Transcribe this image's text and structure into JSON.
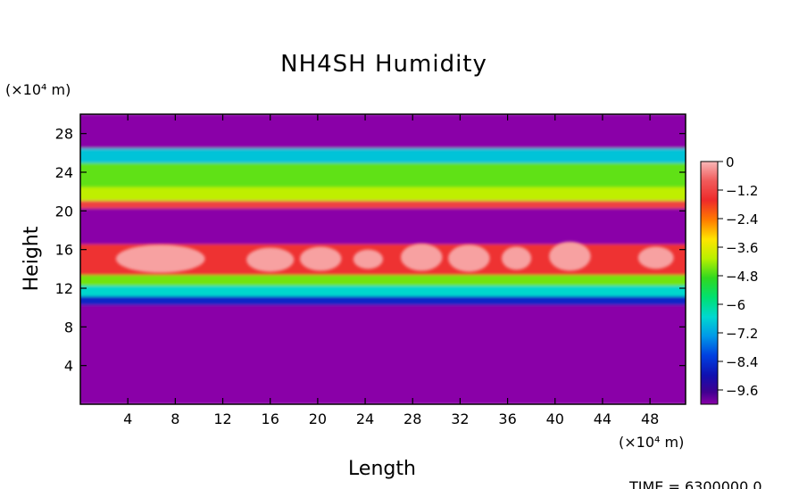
{
  "chart_data": {
    "type": "heatmap",
    "title": "NH4SH Humidity",
    "xlabel": "Length",
    "ylabel": "Height",
    "x_unit": "(×10⁴ m)",
    "y_unit": "(×10⁴ m)",
    "footer": "TIME = 6300000.0",
    "xlim": [
      0,
      51
    ],
    "ylim": [
      0,
      30
    ],
    "x_ticks": [
      4,
      8,
      12,
      16,
      20,
      24,
      28,
      32,
      36,
      40,
      44,
      48
    ],
    "y_ticks": [
      4,
      8,
      12,
      16,
      20,
      24,
      28
    ],
    "colorbar": {
      "min": -10.2,
      "max": 0,
      "tick_values": [
        0,
        -1.2,
        -2.4,
        -3.6,
        -4.8,
        -6,
        -7.2,
        -8.4,
        -9.6
      ],
      "tick_labels": [
        "0",
        "−1.2",
        "−2.4",
        "−3.6",
        "−4.8",
        "−6",
        "−7.2",
        "−8.4",
        "−9.6"
      ]
    },
    "layers": [
      {
        "y_range": [
          0,
          10.3
        ],
        "value": -10.2
      },
      {
        "y_range": [
          10.3,
          11.2
        ],
        "value": -8.6
      },
      {
        "y_range": [
          11.2,
          12.3
        ],
        "value": -6.5
      },
      {
        "y_range": [
          12.3,
          13.4
        ],
        "value": -4.5
      },
      {
        "y_range": [
          13.4,
          16.6
        ],
        "value": -1.5,
        "cloud_value": -0.2
      },
      {
        "y_range": [
          16.6,
          20.3
        ],
        "value": -10.2
      },
      {
        "y_range": [
          20.3,
          21.1
        ],
        "value": -1.2
      },
      {
        "y_range": [
          21.1,
          22.5
        ],
        "value": -4.0
      },
      {
        "y_range": [
          22.5,
          25.0
        ],
        "value": -4.6
      },
      {
        "y_range": [
          25.0,
          26.5
        ],
        "value": -6.8
      },
      {
        "y_range": [
          26.5,
          30.0
        ],
        "value": -10.2
      }
    ],
    "cloud_cells": [
      {
        "x_range": [
          3.0,
          10.5
        ],
        "y_range": [
          13.6,
          16.5
        ]
      },
      {
        "x_range": [
          14.0,
          18.0
        ],
        "y_range": [
          13.7,
          16.2
        ]
      },
      {
        "x_range": [
          18.5,
          22.0
        ],
        "y_range": [
          13.8,
          16.3
        ]
      },
      {
        "x_range": [
          23.0,
          25.5
        ],
        "y_range": [
          14.0,
          16.0
        ]
      },
      {
        "x_range": [
          27.0,
          30.5
        ],
        "y_range": [
          13.8,
          16.6
        ]
      },
      {
        "x_range": [
          31.0,
          34.5
        ],
        "y_range": [
          13.7,
          16.5
        ]
      },
      {
        "x_range": [
          35.5,
          38.0
        ],
        "y_range": [
          13.9,
          16.3
        ]
      },
      {
        "x_range": [
          39.5,
          43.0
        ],
        "y_range": [
          13.8,
          16.8
        ]
      },
      {
        "x_range": [
          47.0,
          50.0
        ],
        "y_range": [
          14.0,
          16.3
        ]
      }
    ]
  }
}
